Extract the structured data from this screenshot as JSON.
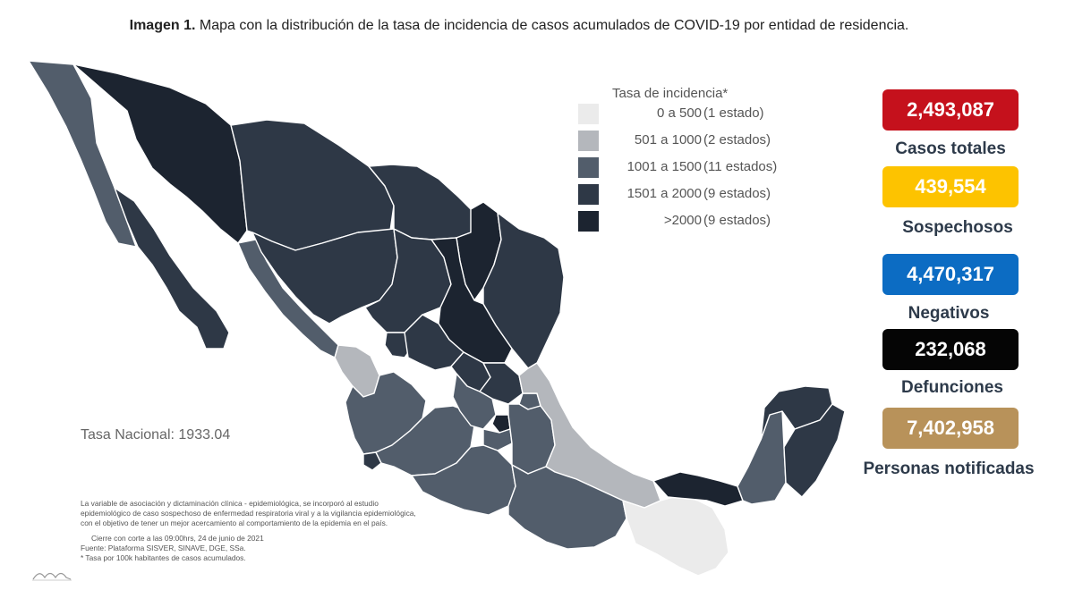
{
  "caption": {
    "label": "Imagen 1.",
    "text": "Mapa con la distribución de la tasa de incidencia de casos acumulados de COVID-19 por entidad de residencia."
  },
  "legend": {
    "title": "Tasa de incidencia*",
    "items": [
      {
        "range": "0 a   500",
        "count": "(1 estado)",
        "color": "#ebebeb"
      },
      {
        "range": "501 a  1000",
        "count": "(2 estados)",
        "color": "#b4b7bc"
      },
      {
        "range": "1001 a   1500",
        "count": "(11 estados)",
        "color": "#525d6b"
      },
      {
        "range": "1501 a  2000",
        "count": "(9 estados)",
        "color": "#2e3846"
      },
      {
        "range": ">2000",
        "count": "(9 estados)",
        "color": "#1c2430"
      }
    ]
  },
  "tasa_nacional": "Tasa Nacional: 1933.04",
  "notes": {
    "lines": [
      "La variable de asociación y dictaminación clínica - epidemiológica, se incorporó al estudio",
      "epidemiológico de caso sospechoso de enfermedad respiratoria viral y a la vigilancia epidemiológica,",
      "con el objetivo de tener un mejor acercamiento al comportamiento de la epidemia en el país."
    ],
    "cut": "Cierre con corte a las 09:00hrs, 24 de junio de 2021",
    "source": "Fuente: Plataforma SISVER, SINAVE, DGE, SSa.",
    "footnote": "* Tasa por 100k habitantes de casos acumulados."
  },
  "stats": [
    {
      "value": "2,493,087",
      "label": "Casos totales",
      "color": "#c5111c"
    },
    {
      "value": "439,554",
      "label": "Sospechosos",
      "color": "#fdc300"
    },
    {
      "value": "4,470,317",
      "label": "Negativos",
      "color": "#0c6cc3"
    },
    {
      "value": "232,068",
      "label": "Defunciones",
      "color": "#050505"
    },
    {
      "value": "7,402,958",
      "label": "Personas notificadas",
      "color": "#b8925a"
    }
  ],
  "map": {
    "colors": {
      "c0": "#ebebeb",
      "c1": "#b4b7bc",
      "c2": "#525d6b",
      "c3": "#2e3846",
      "c4": "#1c2430",
      "border": "#ffffff"
    }
  }
}
